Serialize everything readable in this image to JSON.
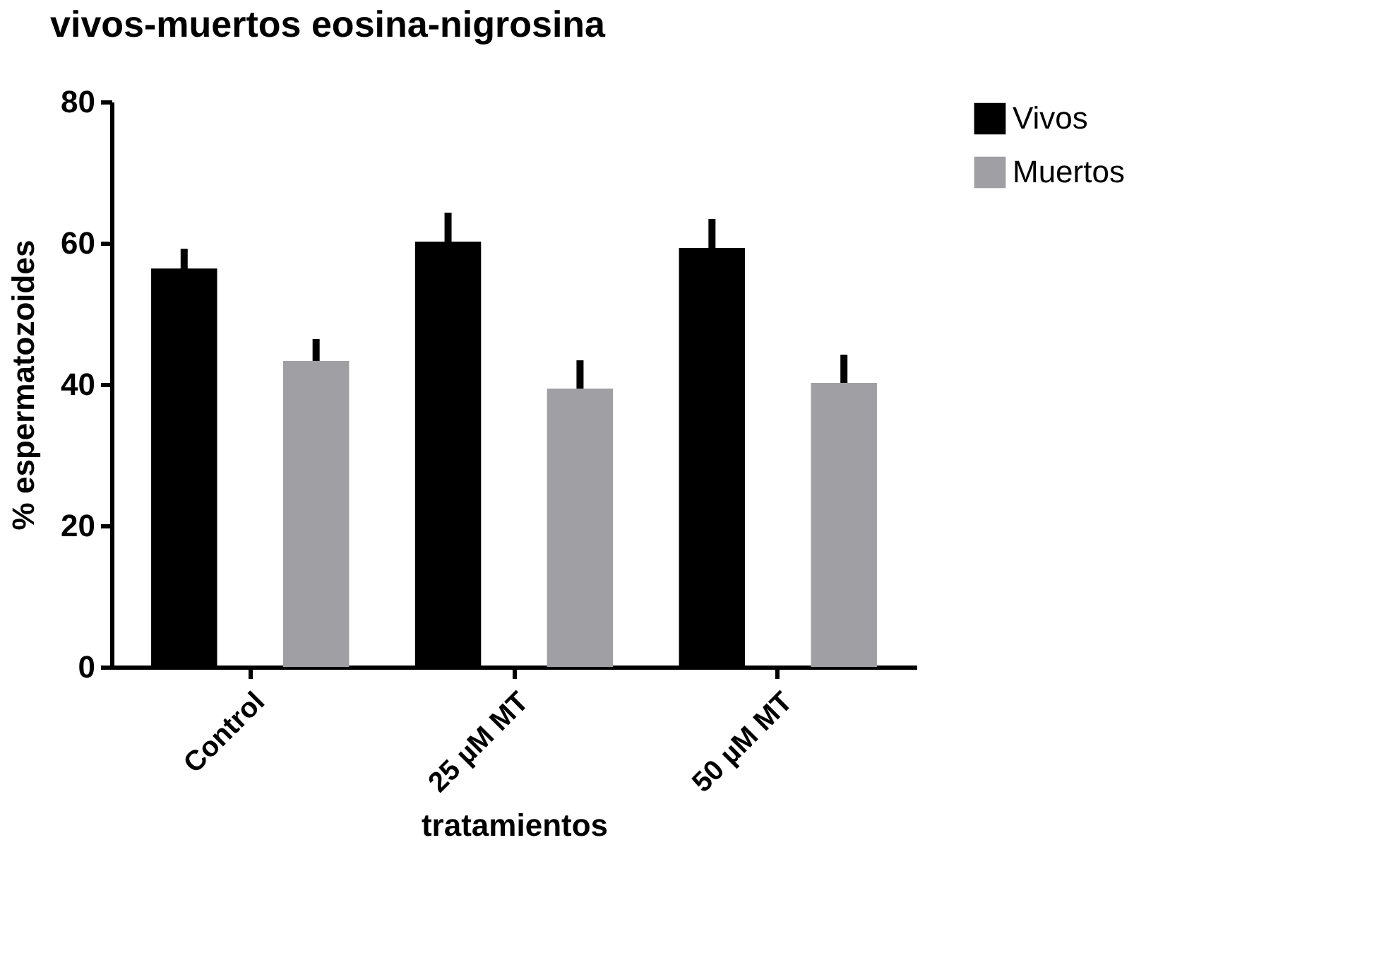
{
  "chart_data": {
    "type": "bar",
    "title": "vivos-muertos eosina-nigrosina",
    "xlabel": "tratamientos",
    "ylabel": "% espermatozoides",
    "categories": [
      "Control",
      "25 µM MT",
      "50 µM MT"
    ],
    "series": [
      {
        "name": "Vivos",
        "color": "#000000",
        "values": [
          56.4,
          60.2,
          59.3
        ],
        "errors": [
          [
            56.4,
            59.2
          ],
          [
            60.2,
            64.3
          ],
          [
            59.3,
            63.4
          ]
        ]
      },
      {
        "name": "Muertos",
        "color": "#a0a0a4",
        "values": [
          43.3,
          39.4,
          40.2
        ],
        "errors": [
          [
            43.3,
            46.4
          ],
          [
            39.4,
            43.4
          ],
          [
            40.2,
            44.2
          ]
        ]
      }
    ],
    "ylim": [
      0,
      80
    ],
    "yticks": [
      0,
      20,
      40,
      60,
      80
    ],
    "grid": false,
    "legend": "top right"
  }
}
